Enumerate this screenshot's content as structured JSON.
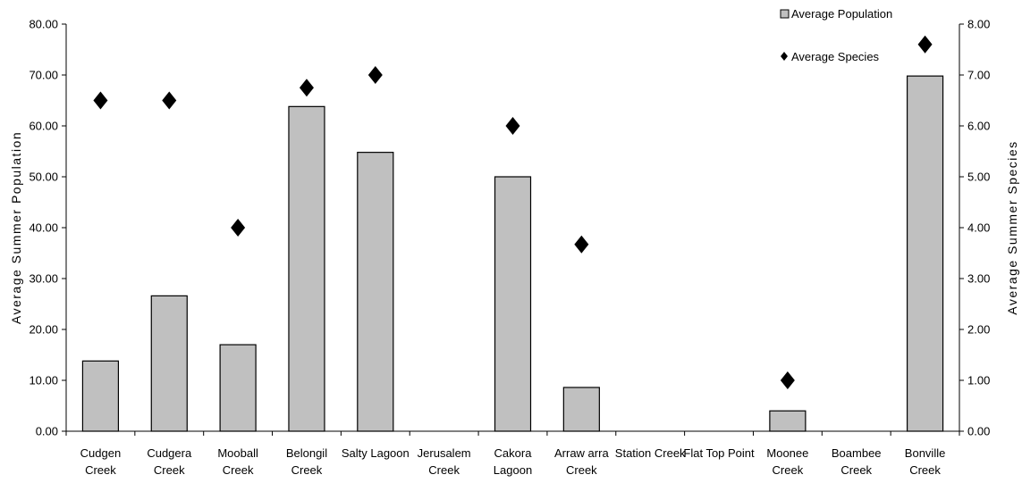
{
  "chart_data": {
    "type": "bar",
    "categories": [
      [
        "Cudgen",
        "Creek"
      ],
      [
        "Cudgera",
        "Creek"
      ],
      [
        "Mooball",
        "Creek"
      ],
      [
        "Belongil",
        "Creek"
      ],
      [
        "Salty Lagoon"
      ],
      [
        "Jerusalem",
        "Creek"
      ],
      [
        "Cakora",
        "Lagoon"
      ],
      [
        "Arraw arra",
        "Creek"
      ],
      [
        "Station Creek"
      ],
      [
        "Flat Top Point"
      ],
      [
        "Moonee",
        "Creek"
      ],
      [
        "Boambee",
        "Creek"
      ],
      [
        "Bonville",
        "Creek"
      ]
    ],
    "series": [
      {
        "name": "Average Population",
        "axis": "left",
        "mark": "bar",
        "color": "#c0c0c0",
        "values": [
          13.8,
          26.6,
          17.0,
          63.8,
          54.8,
          null,
          50.0,
          8.6,
          null,
          null,
          4.0,
          null,
          69.8
        ]
      },
      {
        "name": "Average Species",
        "axis": "right",
        "mark": "diamond",
        "color": "#000000",
        "values": [
          6.5,
          6.5,
          4.0,
          6.75,
          7.0,
          null,
          6.0,
          3.67,
          null,
          null,
          1.0,
          null,
          7.6
        ]
      }
    ],
    "ylabel": "Average Summer Population",
    "y2label": "Average Summer Species",
    "ylim": [
      0,
      80
    ],
    "y2lim": [
      0,
      8
    ],
    "yticks": [
      "0.00",
      "10.00",
      "20.00",
      "30.00",
      "40.00",
      "50.00",
      "60.00",
      "70.00",
      "80.00"
    ],
    "y2ticks": [
      "0.00",
      "1.00",
      "2.00",
      "3.00",
      "4.00",
      "5.00",
      "6.00",
      "7.00",
      "8.00"
    ],
    "grid": false,
    "legend_position": "top-right"
  }
}
